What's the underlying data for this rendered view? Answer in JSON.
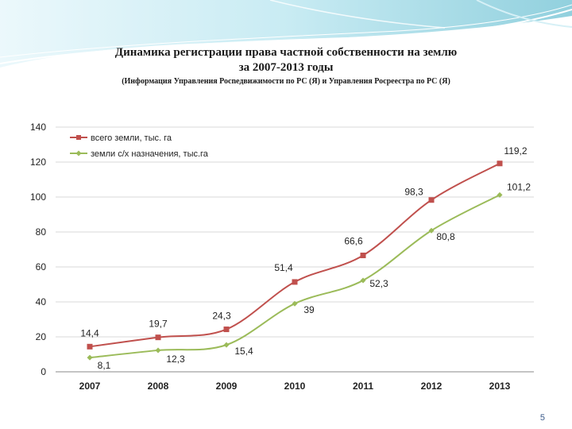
{
  "title_line1": "Динамика регистрации права частной собственности на землю",
  "title_line2": "за 2007-2013 годы",
  "subtitle": "(Информация Управления Росnедвижимости по РС (Я) и Управления Росреестра по РС (Я)",
  "page_number": "5",
  "colors": {
    "series1": "#c0504d",
    "series2": "#9bbb59",
    "banner": "#7ec8d8"
  },
  "chart_data": {
    "type": "line",
    "categories": [
      "2007",
      "2008",
      "2009",
      "2010",
      "2011",
      "2012",
      "2013"
    ],
    "series": [
      {
        "name": "всего земли, тыс. га",
        "values": [
          14.4,
          19.7,
          24.3,
          51.4,
          66.6,
          98.3,
          119.2
        ],
        "labels": [
          "14,4",
          "19,7",
          "24,3",
          "51,4",
          "66,6",
          "98,3",
          "119,2"
        ]
      },
      {
        "name": "земли с/х назначения, тыс.га",
        "values": [
          8.1,
          12.3,
          15.4,
          39,
          52.3,
          80.8,
          101.2
        ],
        "labels": [
          "8,1",
          "12,3",
          "15,4",
          "39",
          "52,3",
          "80,8",
          "101,2"
        ]
      }
    ],
    "ylim": [
      0,
      140
    ],
    "yticks": [
      0,
      20,
      40,
      60,
      80,
      100,
      120,
      140
    ],
    "grid": true,
    "legend": "top-left"
  }
}
